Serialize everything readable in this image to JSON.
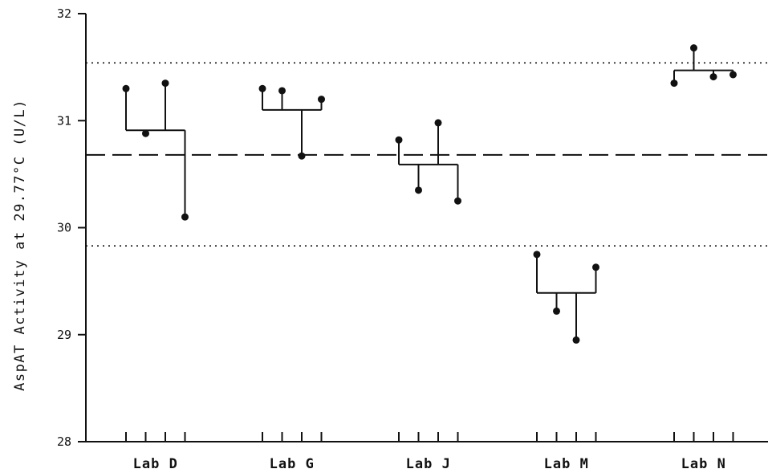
{
  "chart_data": {
    "type": "scatter",
    "title": "",
    "ylabel": "AspAT Activity at 29.77°C   (U/L)",
    "xlabel": "",
    "ylim": [
      28,
      32
    ],
    "yticks": [
      "28",
      "29",
      "30",
      "31",
      "32"
    ],
    "grid": false,
    "reference_lines": [
      {
        "kind": "mean",
        "style": "dashed",
        "y": 30.68
      },
      {
        "kind": "upper-limit",
        "style": "dotted",
        "y": 31.54
      },
      {
        "kind": "lower-limit",
        "style": "dotted",
        "y": 29.83
      }
    ],
    "categories": [
      "Lab D",
      "Lab G",
      "Lab J",
      "Lab M",
      "Lab N"
    ],
    "labs": [
      {
        "label": "Lab D",
        "mean": 30.91,
        "values": [
          31.3,
          30.88,
          31.35,
          30.1
        ]
      },
      {
        "label": "Lab G",
        "mean": 31.1,
        "values": [
          31.3,
          31.28,
          30.67,
          31.2
        ]
      },
      {
        "label": "Lab J",
        "mean": 30.59,
        "values": [
          30.82,
          30.35,
          30.98,
          30.25
        ]
      },
      {
        "label": "Lab M",
        "mean": 29.39,
        "values": [
          29.75,
          29.22,
          28.95,
          29.63
        ]
      },
      {
        "label": "Lab N",
        "mean": 31.47,
        "values": [
          31.35,
          31.68,
          31.41,
          31.43
        ]
      }
    ]
  }
}
